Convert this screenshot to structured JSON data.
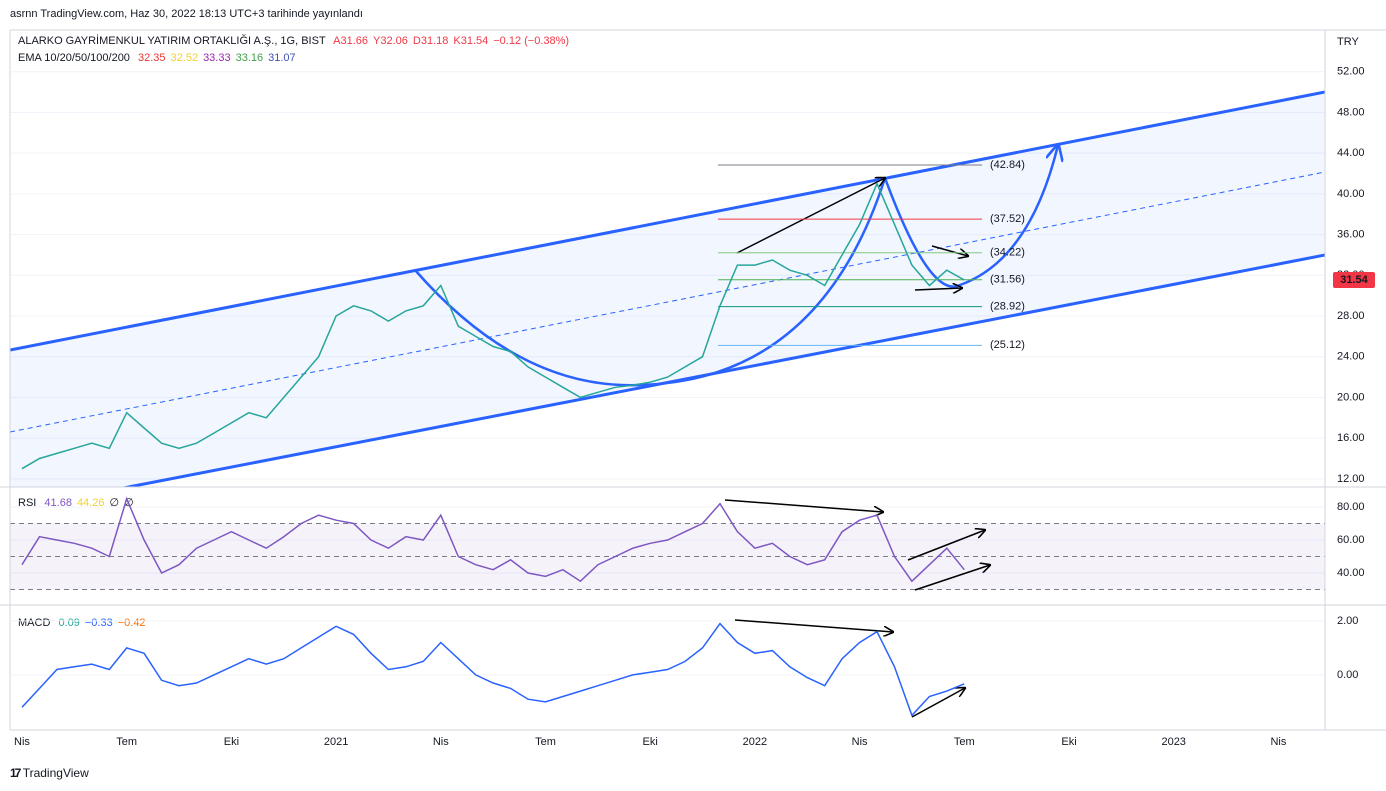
{
  "header": {
    "published": "asrnn TradingView.com, Haz 30, 2022 18:13 UTC+3 tarihinde yayınlandı",
    "footer": "TradingView"
  },
  "chart_data": [
    {
      "type": "line",
      "title": "ALARKO GAYRİMENKUL YATIRIM ORTAKLIĞI A.Ş., 1G, BIST",
      "quote": [
        "A31.66",
        "Y32.06",
        "D31.18",
        "K31.54",
        "−0.12 (−0.38%)"
      ],
      "indicator": "EMA 10/20/50/100/200",
      "indicator_values": [
        {
          "label": "32.35",
          "color": "#e53935"
        },
        {
          "label": "32.52",
          "color": "#f2d22e"
        },
        {
          "label": "33.33",
          "color": "#9c27b0"
        },
        {
          "label": "33.16",
          "color": "#43a047"
        },
        {
          "label": "31.07",
          "color": "#3f51b5"
        }
      ],
      "currency": "TRY",
      "categories": [
        "Nis",
        null,
        null,
        null,
        null,
        null,
        "Tem",
        null,
        null,
        null,
        null,
        null,
        "Eki",
        null,
        null,
        null,
        null,
        null,
        "2021",
        null,
        null,
        null,
        null,
        null,
        "Nis",
        null,
        null,
        null,
        null,
        null,
        "Tem",
        null,
        null,
        null,
        null,
        null,
        "Eki",
        null,
        null,
        null,
        null,
        null,
        "2022",
        null,
        null,
        null,
        null,
        null,
        "Nis",
        null,
        null,
        null,
        null,
        null,
        "Tem",
        null,
        null,
        null,
        null,
        null,
        "Eki",
        null,
        null,
        null,
        null,
        null,
        "2023",
        null,
        null,
        null,
        null,
        null,
        "Nis",
        null,
        null
      ],
      "series": [
        {
          "name": "ALARKO GAYRİMENKUL YATIRIM ORTAKLIĞI A.Ş., 1G, BIST",
          "color": "#26a69a",
          "values": [
            13,
            14,
            14.5,
            15,
            15.5,
            15,
            18.5,
            17,
            15.5,
            15,
            15.5,
            16.5,
            17.5,
            18.5,
            18,
            20,
            22,
            24,
            28,
            29,
            28.5,
            27.5,
            28.5,
            29,
            31,
            27,
            26,
            25,
            24.5,
            23,
            22,
            21,
            20,
            20.5,
            21,
            21.2,
            21.5,
            22,
            23,
            24,
            29,
            33,
            33,
            33.5,
            32.5,
            32,
            31,
            34,
            37,
            41,
            37,
            33,
            31,
            32.5,
            31.54,
            null,
            null,
            null,
            null,
            null,
            null,
            null,
            null,
            null,
            null,
            null,
            null,
            null,
            null,
            null,
            null,
            null,
            null,
            null,
            null
          ]
        }
      ],
      "last_value": 31.54,
      "last_color": "#f23645",
      "levels": [
        42.84,
        37.52,
        34.22,
        31.56,
        28.92,
        25.12
      ],
      "level_labels": [
        "(42.84)",
        "(37.52)",
        "(34.22)",
        "(31.56)",
        "(28.92)",
        "(25.12)"
      ],
      "level_colors": [
        "#787b86",
        "#f23645",
        "#81c784",
        "#4caf50",
        "#089981",
        "#64b5f6"
      ],
      "ylim": [
        11.2,
        56.1
      ],
      "yticks": [
        {
          "value": 12,
          "label": "12.00"
        },
        {
          "value": 16,
          "label": "16.00"
        },
        {
          "value": 20,
          "label": "20.00"
        },
        {
          "value": 24,
          "label": "24.00"
        },
        {
          "value": 28,
          "label": "28.00"
        },
        {
          "value": 32,
          "label": "32.00"
        },
        {
          "value": 36,
          "label": "36.00"
        },
        {
          "value": 40,
          "label": "40.00"
        },
        {
          "value": 44,
          "label": "44.00"
        },
        {
          "value": 48,
          "label": "48.00"
        },
        {
          "value": 52,
          "label": "52.00"
        }
      ],
      "grid": true
    },
    {
      "type": "line",
      "title": "RSI",
      "indicator_values": [
        {
          "label": "41.68",
          "color": "#7e57c2"
        },
        {
          "label": "44.26",
          "color": "#f2d22e"
        },
        {
          "label": "∅",
          "color": "#131722"
        },
        {
          "label": "∅",
          "color": "#131722"
        }
      ],
      "series": [
        {
          "name": "RSI",
          "color": "#7e57c2",
          "values": [
            45,
            62,
            60,
            58,
            55,
            50,
            85,
            60,
            40,
            45,
            55,
            60,
            65,
            60,
            55,
            62,
            70,
            75,
            72,
            70,
            60,
            55,
            62,
            60,
            75,
            50,
            45,
            42,
            48,
            40,
            38,
            42,
            35,
            45,
            50,
            55,
            58,
            60,
            65,
            70,
            82,
            65,
            55,
            58,
            50,
            45,
            48,
            65,
            72,
            75,
            50,
            35,
            45,
            55,
            42,
            null,
            null,
            null,
            null,
            null,
            null,
            null,
            null,
            null,
            null,
            null,
            null,
            null,
            null,
            null,
            null,
            null,
            null,
            null,
            null
          ]
        }
      ],
      "bands": [
        70,
        50,
        30
      ],
      "ylim": [
        20.6,
        92.1
      ],
      "yticks": [
        {
          "value": 40,
          "label": "40.00"
        },
        {
          "value": 60,
          "label": "60.00"
        },
        {
          "value": 80,
          "label": "80.00"
        }
      ],
      "grid": true
    },
    {
      "type": "line",
      "title": "MACD",
      "indicator_values": [
        {
          "label": "0.09",
          "color": "#26a69a"
        },
        {
          "label": "−0.33",
          "color": "#2962ff"
        },
        {
          "label": "−0.42",
          "color": "#ff6d00"
        }
      ],
      "series": [
        {
          "name": "MACD",
          "color": "#2962ff",
          "values": [
            -1.2,
            -0.5,
            0.2,
            0.3,
            0.4,
            0.2,
            1.0,
            0.8,
            -0.2,
            -0.4,
            -0.3,
            0,
            0.3,
            0.6,
            0.4,
            0.6,
            1.0,
            1.4,
            1.8,
            1.5,
            0.8,
            0.2,
            0.3,
            0.5,
            1.2,
            0.6,
            0,
            -0.3,
            -0.5,
            -0.9,
            -1.0,
            -0.8,
            -0.6,
            -0.4,
            -0.2,
            0,
            0.1,
            0.2,
            0.5,
            1.0,
            1.9,
            1.2,
            0.8,
            0.9,
            0.3,
            -0.1,
            -0.4,
            0.6,
            1.2,
            1.6,
            0.3,
            -1.5,
            -0.8,
            -0.6,
            -0.33,
            null,
            null,
            null,
            null,
            null,
            null,
            null,
            null,
            null,
            null,
            null,
            null,
            null,
            null,
            null,
            null,
            null,
            null,
            null,
            null
          ]
        }
      ],
      "ylim": [
        -2.04,
        2.59
      ],
      "yticks": [
        {
          "value": 0,
          "label": "0.00"
        },
        {
          "value": 2,
          "label": "2.00"
        }
      ],
      "grid": true
    }
  ]
}
